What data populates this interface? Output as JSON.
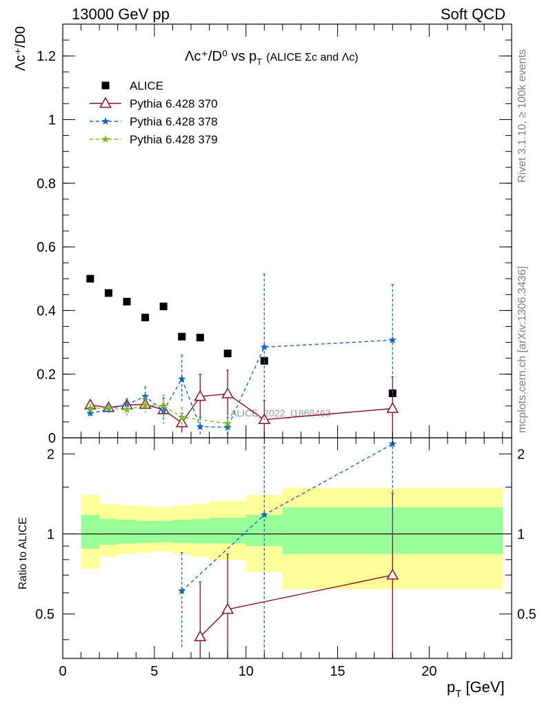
{
  "header": {
    "left": "13000 GeV pp",
    "right": "Soft QCD"
  },
  "side_labels": {
    "rivet": "Rivet 3.1.10, ≥ 100k events",
    "mcplots": "mcplots.cern.ch [arXiv:1306.3436]"
  },
  "watermark": "ALICE_2022_I1868463",
  "plot_title": {
    "main": "Λc⁺/D⁰ vs p",
    "main_sub": "T",
    "extra": "(ALICE Σc and Λc)"
  },
  "colors": {
    "data": "#000000",
    "p370": "#8b0d23",
    "p378": "#1166cc",
    "p379": "#77bb22",
    "band_inner": "#99ff99",
    "band_outer": "#ffff99"
  },
  "chart_data": [
    {
      "type": "scatter",
      "panel": "main",
      "ylabel": "Λc⁺/D0",
      "ylim": [
        0,
        1.3
      ],
      "xlim": [
        0,
        24.5
      ],
      "yticks": [
        "0",
        "0.2",
        "0.4",
        "0.6",
        "0.8",
        "1",
        "1.2"
      ],
      "legend_position": "top-left",
      "series": [
        {
          "name": "ALICE",
          "marker": "square",
          "x": [
            1.5,
            2.5,
            3.5,
            4.5,
            5.5,
            6.5,
            7.5,
            9.0,
            11.0,
            18.0
          ],
          "y": [
            0.5,
            0.455,
            0.428,
            0.378,
            0.413,
            0.318,
            0.315,
            0.265,
            0.242,
            0.14
          ],
          "xerr": [
            0.5,
            0.5,
            0.5,
            0.5,
            0.5,
            0.5,
            0.5,
            1.0,
            1.0,
            6.0
          ]
        },
        {
          "name": "Pythia 6.428 370",
          "marker": "triangle-open",
          "linestyle": "solid",
          "x": [
            1.5,
            2.5,
            3.5,
            4.5,
            5.5,
            6.5,
            7.5,
            9.0,
            11.0,
            18.0
          ],
          "y": [
            0.103,
            0.095,
            0.103,
            0.105,
            0.088,
            0.047,
            0.13,
            0.138,
            0.057,
            0.092
          ],
          "yerr": [
            0.01,
            0.01,
            0.012,
            0.015,
            0.02,
            0.03,
            0.07,
            0.075,
            0.06,
            0.1
          ]
        },
        {
          "name": "Pythia 6.428 378",
          "marker": "star",
          "linestyle": "dashed",
          "x": [
            1.5,
            2.5,
            3.5,
            4.5,
            5.5,
            6.5,
            7.5,
            9.0,
            11.0,
            18.0
          ],
          "y": [
            0.077,
            0.09,
            0.105,
            0.13,
            0.085,
            0.185,
            0.035,
            0.033,
            0.285,
            0.307
          ],
          "yerr": [
            0.008,
            0.012,
            0.018,
            0.03,
            0.04,
            0.075,
            0.03,
            0.03,
            0.23,
            0.175
          ]
        },
        {
          "name": "Pythia 6.428 379",
          "marker": "star",
          "linestyle": "dashed",
          "x": [
            1.5,
            2.5,
            3.5,
            4.5,
            5.5,
            6.5,
            9.0
          ],
          "y": [
            0.093,
            0.093,
            0.088,
            0.103,
            0.1,
            0.065,
            0.045
          ],
          "yerr": [
            0.012,
            0.015,
            0.02,
            0.025,
            0.035,
            0.03,
            0.03
          ]
        }
      ]
    },
    {
      "type": "scatter",
      "panel": "ratio",
      "xlabel": "p",
      "xlabel_sub": "T",
      "xlabel_unit": "[GeV]",
      "ylabel": "Ratio to ALICE",
      "ylim": [
        0.34,
        2.3
      ],
      "xlim": [
        0,
        24.5
      ],
      "xticks": [
        "0",
        "5",
        "10",
        "15",
        "20"
      ],
      "yticks": [
        "0.5",
        "1",
        "2"
      ],
      "uncertainty_bands": [
        {
          "x": [
            1,
            2,
            3,
            4,
            5,
            6,
            7,
            8,
            10,
            12,
            24
          ],
          "inner_lo": [
            0.88,
            0.91,
            0.92,
            0.925,
            0.93,
            0.925,
            0.92,
            0.92,
            0.9,
            0.84
          ],
          "inner_hi": [
            1.18,
            1.14,
            1.13,
            1.12,
            1.12,
            1.13,
            1.14,
            1.15,
            1.18,
            1.26
          ],
          "outer_lo": [
            0.74,
            0.82,
            0.84,
            0.85,
            0.86,
            0.84,
            0.82,
            0.8,
            0.72,
            0.62
          ],
          "outer_hi": [
            1.4,
            1.3,
            1.28,
            1.27,
            1.26,
            1.28,
            1.3,
            1.33,
            1.4,
            1.49
          ]
        }
      ],
      "series": [
        {
          "name": "Pythia 6.428 370",
          "x": [
            7.5,
            9.0,
            18.0
          ],
          "y": [
            0.41,
            0.52,
            0.7
          ],
          "yerr": [
            0.25,
            0.32,
            0.72
          ]
        },
        {
          "name": "Pythia 6.428 378",
          "x": [
            6.5,
            11.0,
            18.0
          ],
          "y": [
            0.61,
            1.18,
            2.18
          ],
          "yerr": [
            0.24,
            0.95,
            1.2
          ]
        }
      ]
    }
  ]
}
